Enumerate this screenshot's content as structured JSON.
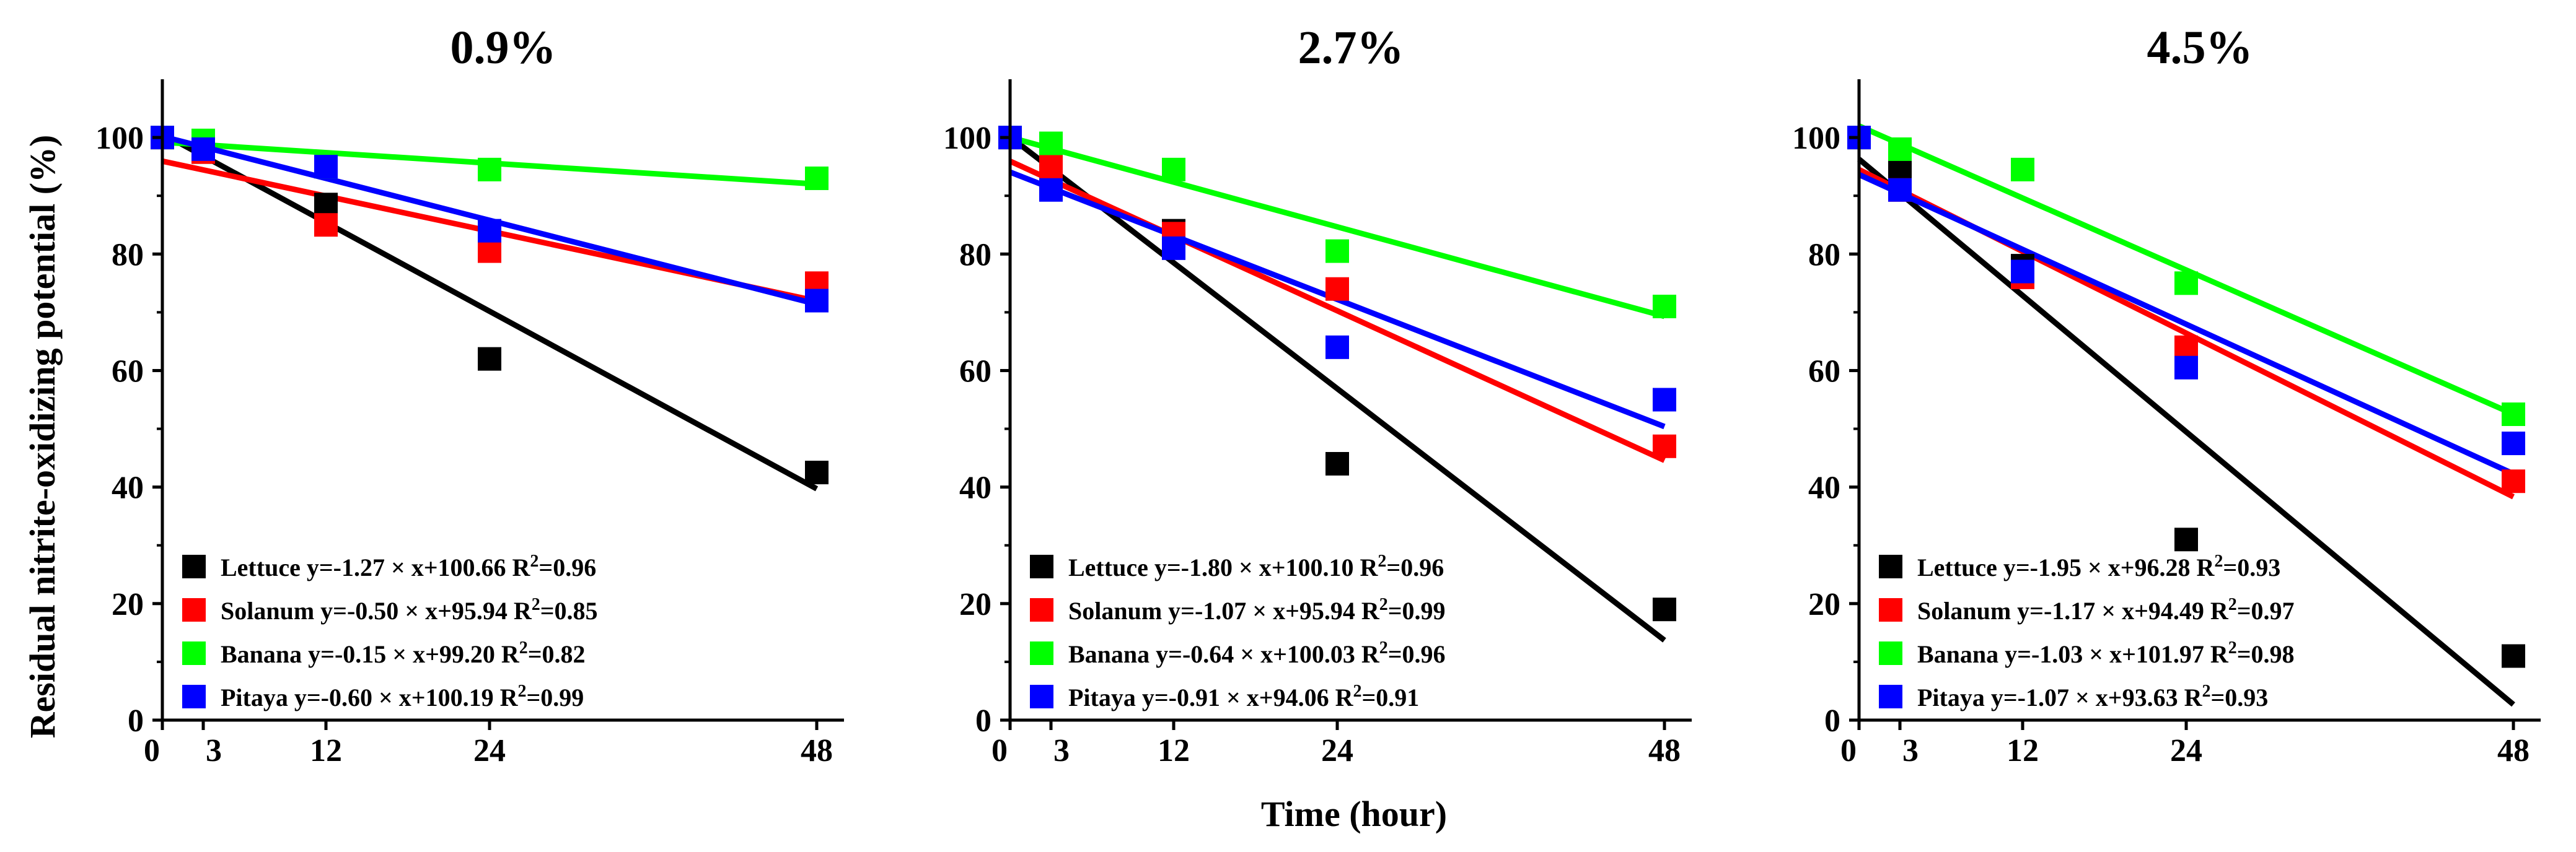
{
  "figure": {
    "ylabel": "Residual nitrite-oxidizing potential (%)",
    "xlabel": "Time (hour)"
  },
  "chart_data": [
    {
      "type": "scatter",
      "title": "0.9%",
      "x": [
        0,
        3,
        12,
        24,
        48
      ],
      "xticks": [
        0,
        3,
        12,
        24,
        48
      ],
      "yticks": [
        0,
        20,
        40,
        60,
        80,
        100
      ],
      "xlim": [
        0,
        50
      ],
      "ylim": [
        0,
        110
      ],
      "series": [
        {
          "name": "Lettuce",
          "color": "#000000",
          "values": [
            100,
            97.5,
            88.5,
            62,
            42.5
          ],
          "fit": {
            "slope": -1.27,
            "intercept": 100.66
          },
          "equation": "y=-1.27 × x+100.66",
          "r2": "0.96"
        },
        {
          "name": "Solanum",
          "color": "#ff0000",
          "values": [
            100,
            97.5,
            85,
            80.5,
            75
          ],
          "fit": {
            "slope": -0.5,
            "intercept": 95.94
          },
          "equation": "y=-0.50 × x+95.94",
          "r2": "0.85"
        },
        {
          "name": "Banana",
          "color": "#00ff00",
          "values": [
            100,
            99.5,
            95,
            94.5,
            93
          ],
          "fit": {
            "slope": -0.15,
            "intercept": 99.2
          },
          "equation": "y=-0.15 × x+99.20",
          "r2": "0.82"
        },
        {
          "name": "Pitaya",
          "color": "#0000ff",
          "values": [
            100,
            98,
            95,
            84,
            72
          ],
          "fit": {
            "slope": -0.6,
            "intercept": 100.19
          },
          "equation": "y=-0.60 × x+100.19",
          "r2": "0.99"
        }
      ]
    },
    {
      "type": "scatter",
      "title": "2.7%",
      "x": [
        0,
        3,
        12,
        24,
        48
      ],
      "xticks": [
        0,
        3,
        12,
        24,
        48
      ],
      "yticks": [
        0,
        20,
        40,
        60,
        80,
        100
      ],
      "xlim": [
        0,
        50
      ],
      "ylim": [
        0,
        110
      ],
      "series": [
        {
          "name": "Lettuce",
          "color": "#000000",
          "values": [
            100,
            93,
            84,
            44,
            19
          ],
          "fit": {
            "slope": -1.8,
            "intercept": 100.1
          },
          "equation": "y=-1.80 × x+100.10",
          "r2": "0.96"
        },
        {
          "name": "Solanum",
          "color": "#ff0000",
          "values": [
            100,
            95,
            83.5,
            74,
            47
          ],
          "fit": {
            "slope": -1.07,
            "intercept": 95.94
          },
          "equation": "y=-1.07 × x+95.94",
          "r2": "0.99"
        },
        {
          "name": "Banana",
          "color": "#00ff00",
          "values": [
            100,
            99,
            94.5,
            80.5,
            71
          ],
          "fit": {
            "slope": -0.64,
            "intercept": 100.03
          },
          "equation": "y=-0.64 × x+100.03",
          "r2": "0.96"
        },
        {
          "name": "Pitaya",
          "color": "#0000ff",
          "values": [
            100,
            91,
            81,
            64,
            55
          ],
          "fit": {
            "slope": -0.91,
            "intercept": 94.06
          },
          "equation": "y=-0.91 × x+94.06",
          "r2": "0.91"
        }
      ]
    },
    {
      "type": "scatter",
      "title": "4.5%",
      "x": [
        0,
        3,
        12,
        24,
        48
      ],
      "xticks": [
        0,
        3,
        12,
        24,
        48
      ],
      "yticks": [
        0,
        20,
        40,
        60,
        80,
        100
      ],
      "xlim": [
        0,
        50
      ],
      "ylim": [
        0,
        110
      ],
      "series": [
        {
          "name": "Lettuce",
          "color": "#000000",
          "values": [
            100,
            94,
            78,
            31,
            11
          ],
          "fit": {
            "slope": -1.95,
            "intercept": 96.28
          },
          "equation": "y=-1.95 × x+96.28",
          "r2": "0.93"
        },
        {
          "name": "Solanum",
          "color": "#ff0000",
          "values": [
            100,
            91,
            76,
            64,
            41
          ],
          "fit": {
            "slope": -1.17,
            "intercept": 94.49
          },
          "equation": "y=-1.17 × x+94.49",
          "r2": "0.97"
        },
        {
          "name": "Banana",
          "color": "#00ff00",
          "values": [
            100,
            98,
            94.5,
            75,
            52.5
          ],
          "fit": {
            "slope": -1.03,
            "intercept": 101.97
          },
          "equation": "y=-1.03 × x+101.97",
          "r2": "0.98"
        },
        {
          "name": "Pitaya",
          "color": "#0000ff",
          "values": [
            100,
            91,
            77,
            60.5,
            47.5
          ],
          "fit": {
            "slope": -1.07,
            "intercept": 93.63
          },
          "equation": "y=-1.07 × x+93.63",
          "r2": "0.93"
        }
      ]
    }
  ]
}
